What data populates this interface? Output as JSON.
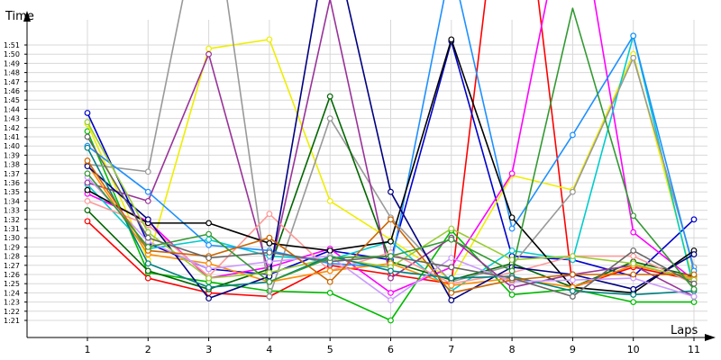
{
  "chart_data": {
    "type": "line",
    "title": "",
    "xlabel": "Laps",
    "ylabel": "Time",
    "x": [
      1,
      2,
      3,
      4,
      5,
      6,
      7,
      8,
      9,
      10,
      11
    ],
    "x_tick_labels": [
      "1",
      "2",
      "3",
      "4",
      "5",
      "6",
      "7",
      "8",
      "9",
      "10",
      "11"
    ],
    "y_unit": "seconds (m:ss)",
    "ylim": [
      73,
      115
    ],
    "y_ticks": [
      81,
      82,
      83,
      84,
      85,
      86,
      87,
      88,
      89,
      90,
      91,
      92,
      93,
      94,
      95,
      96,
      97,
      98,
      99,
      100,
      101,
      102,
      103,
      104,
      105,
      106,
      107,
      108,
      109,
      110,
      111
    ],
    "y_tick_labels": [
      "1:21",
      "1:22",
      "1:23",
      "1:24",
      "1:25",
      "1:26",
      "1:27",
      "1:28",
      "1:29",
      "1:30",
      "1:31",
      "1:32",
      "1:33",
      "1:34",
      "1:35",
      "1:36",
      "1:37",
      "1:38",
      "1:39",
      "1:40",
      "1:41",
      "1:42",
      "1:43",
      "1:44",
      "1:45",
      "1:46",
      "1:47",
      "1:48",
      "1:49",
      "1:50",
      "1:51"
    ],
    "grid": true,
    "legend": "none",
    "series": [
      {
        "color": "#ff0000",
        "values": [
          91.8,
          85.6,
          84.0,
          83.6,
          87.0,
          86.0,
          85.0,
          140,
          84.6,
          86.8,
          85.4
        ]
      },
      {
        "color": "#0000cc",
        "values": [
          103.6,
          89.4,
          86.6,
          86.0,
          88.6,
          87.6,
          111.4,
          88.0,
          87.6,
          85.8,
          92.0
        ]
      },
      {
        "color": "#00bb00",
        "values": [
          101.6,
          86.2,
          85.2,
          84.2,
          84.0,
          81.0,
          90.8,
          83.8,
          84.4,
          83.0,
          83.0
        ]
      },
      {
        "color": "#eeee00",
        "values": [
          102.4,
          87.6,
          110.6,
          111.6,
          94.0,
          89.8,
          85.4,
          96.8,
          95.2,
          110.0,
          85.0
        ]
      },
      {
        "color": "#ff00ff",
        "values": [
          94.8,
          91.8,
          85.6,
          86.8,
          88.8,
          84.0,
          86.8,
          97.0,
          130,
          90.6,
          85.4
        ]
      },
      {
        "color": "#00cccc",
        "values": [
          95.8,
          88.8,
          89.8,
          88.0,
          87.6,
          89.6,
          84.2,
          88.6,
          87.6,
          112.0,
          84.4
        ]
      },
      {
        "color": "#999999",
        "values": [
          98.0,
          97.2,
          130,
          83.6,
          103.0,
          92.2,
          85.2,
          87.0,
          95.0,
          109.6,
          86.8
        ]
      },
      {
        "color": "#006600",
        "values": [
          93.0,
          86.4,
          84.4,
          86.6,
          105.4,
          87.4,
          85.4,
          87.2,
          84.6,
          87.4,
          85.8
        ]
      },
      {
        "color": "#993399",
        "values": [
          96.0,
          94.0,
          110,
          86.0,
          116,
          85.6,
          90.0,
          84.6,
          86.0,
          87.0,
          83.6
        ]
      },
      {
        "color": "#ff9999",
        "values": [
          94.0,
          91.4,
          85.8,
          92.6,
          86.4,
          88.4,
          85.0,
          86.2,
          88.0,
          88.0,
          85.0
        ]
      },
      {
        "color": "#1e90ff",
        "values": [
          100.0,
          95.0,
          89.2,
          88.6,
          87.2,
          86.8,
          120,
          91.0,
          101.2,
          112.0,
          86.4
        ]
      },
      {
        "color": "#000000",
        "values": [
          95.2,
          91.6,
          91.6,
          89.4,
          88.6,
          89.6,
          111.6,
          92.2,
          84.6,
          84.0,
          88.6
        ]
      },
      {
        "color": "#ff8c00",
        "values": [
          98.0,
          88.2,
          87.2,
          85.2,
          86.4,
          87.2,
          84.8,
          85.6,
          84.6,
          87.0,
          85.6
        ]
      },
      {
        "color": "#000080",
        "values": [
          97.8,
          92.0,
          83.4,
          85.8,
          124,
          95.0,
          83.2,
          86.8,
          86.0,
          84.4,
          88.2
        ]
      },
      {
        "color": "#99cc33",
        "values": [
          102.6,
          90.6,
          85.6,
          86.2,
          87.8,
          86.8,
          91.0,
          87.6,
          88.0,
          87.2,
          85.4
        ]
      },
      {
        "color": "#008080",
        "values": [
          99.8,
          87.2,
          84.6,
          85.2,
          88.0,
          86.4,
          85.6,
          85.8,
          84.2,
          83.8,
          84.2
        ]
      },
      {
        "color": "#cc99ff",
        "values": [
          96.6,
          89.6,
          86.6,
          87.4,
          88.0,
          83.2,
          87.8,
          85.2,
          85.4,
          85.6,
          83.6
        ]
      },
      {
        "color": "#cc6600",
        "values": [
          98.4,
          88.6,
          88.0,
          90.0,
          85.2,
          92.0,
          84.0,
          85.4,
          86.0,
          86.0,
          86.0
        ]
      },
      {
        "color": "#666666",
        "values": [
          101.0,
          90.0,
          87.8,
          88.4,
          87.4,
          88.0,
          86.8,
          85.6,
          83.6,
          88.6,
          85.0
        ]
      },
      {
        "color": "#339933",
        "values": [
          97.0,
          89.0,
          90.4,
          85.2,
          87.8,
          88.0,
          89.8,
          86.4,
          115,
          92.4,
          84.4
        ]
      }
    ]
  }
}
